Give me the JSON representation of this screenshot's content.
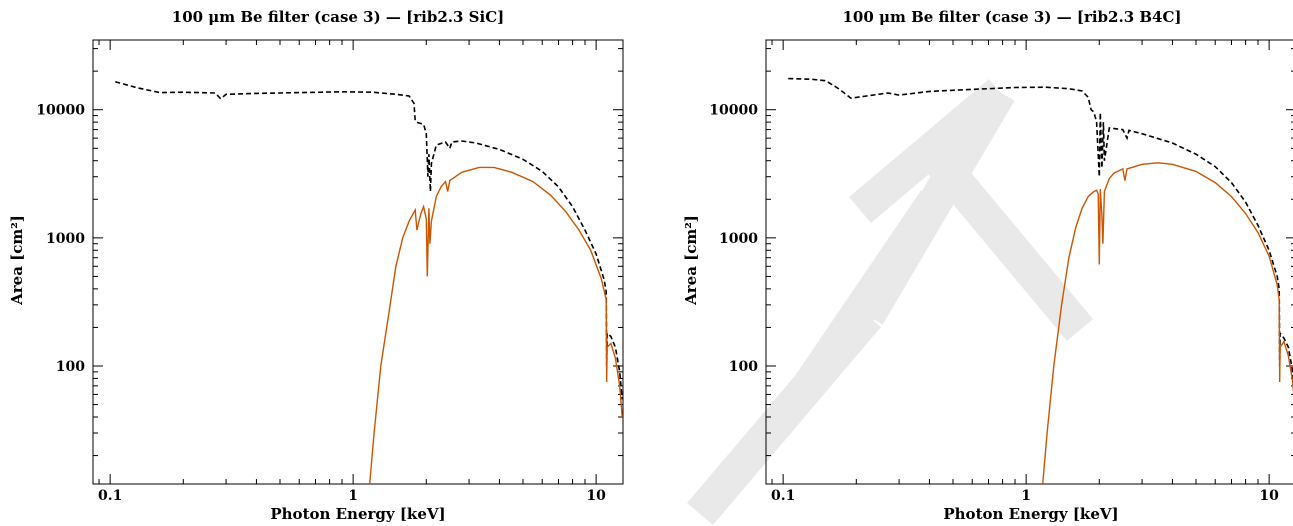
{
  "colors": {
    "effective_area": "#cc5500",
    "total_area": "#000000",
    "watermark": "#e9e9e9"
  },
  "watermark": {
    "text": "FT"
  },
  "chart_data": [
    {
      "type": "line",
      "title": "100 μm Be filter (case 3) — [rib2.3 SiC]",
      "xlabel": "Photon Energy [keV]",
      "ylabel": "Area [cm²]",
      "xscale": "log",
      "yscale": "log",
      "xlim": [
        0.085,
        12.9
      ],
      "ylim": [
        12,
        35000
      ],
      "xticks": [
        0.1,
        1,
        10
      ],
      "xtick_labels": [
        "0.1",
        "1",
        "10"
      ],
      "yticks": [
        100,
        1000,
        10000
      ],
      "ytick_labels": [
        "100",
        "1000",
        "10000"
      ],
      "grid": false,
      "series": [
        {
          "style": "dashed",
          "color": "#000000",
          "points": [
            [
              0.105,
              16500
            ],
            [
              0.13,
              14800
            ],
            [
              0.16,
              13600
            ],
            [
              0.2,
              13700
            ],
            [
              0.27,
              13500
            ],
            [
              0.285,
              12200
            ],
            [
              0.3,
              13200
            ],
            [
              0.4,
              13400
            ],
            [
              0.6,
              13600
            ],
            [
              0.9,
              13800
            ],
            [
              1.2,
              13700
            ],
            [
              1.5,
              13200
            ],
            [
              1.7,
              12800
            ],
            [
              1.78,
              11200
            ],
            [
              1.8,
              8200
            ],
            [
              1.85,
              7900
            ],
            [
              1.95,
              7700
            ],
            [
              2.0,
              6500
            ],
            [
              2.03,
              3000
            ],
            [
              2.05,
              4500
            ],
            [
              2.08,
              2300
            ],
            [
              2.1,
              3800
            ],
            [
              2.2,
              5300
            ],
            [
              2.4,
              5600
            ],
            [
              2.5,
              5000
            ],
            [
              2.55,
              5600
            ],
            [
              2.8,
              5700
            ],
            [
              3.2,
              5500
            ],
            [
              4.0,
              4900
            ],
            [
              5.0,
              4100
            ],
            [
              6.0,
              3300
            ],
            [
              7.0,
              2500
            ],
            [
              8.0,
              1750
            ],
            [
              9.0,
              1150
            ],
            [
              10.0,
              750
            ],
            [
              10.8,
              470
            ],
            [
              11.0,
              380
            ],
            [
              11.05,
              100
            ],
            [
              11.1,
              180
            ],
            [
              11.5,
              170
            ],
            [
              12.0,
              140
            ],
            [
              12.5,
              90
            ],
            [
              12.8,
              55
            ]
          ]
        },
        {
          "style": "solid",
          "color": "#cc5500",
          "points": [
            [
              1.17,
              12
            ],
            [
              1.22,
              30
            ],
            [
              1.3,
              100
            ],
            [
              1.4,
              250
            ],
            [
              1.5,
              600
            ],
            [
              1.6,
              1000
            ],
            [
              1.7,
              1350
            ],
            [
              1.8,
              1650
            ],
            [
              1.83,
              1150
            ],
            [
              1.9,
              1550
            ],
            [
              1.95,
              1750
            ],
            [
              2.0,
              1400
            ],
            [
              2.02,
              500
            ],
            [
              2.05,
              1700
            ],
            [
              2.07,
              900
            ],
            [
              2.1,
              1350
            ],
            [
              2.2,
              2100
            ],
            [
              2.3,
              2500
            ],
            [
              2.4,
              2750
            ],
            [
              2.45,
              2300
            ],
            [
              2.5,
              2800
            ],
            [
              2.8,
              3250
            ],
            [
              3.3,
              3550
            ],
            [
              3.8,
              3550
            ],
            [
              4.5,
              3250
            ],
            [
              5.5,
              2750
            ],
            [
              6.5,
              2150
            ],
            [
              7.5,
              1600
            ],
            [
              8.5,
              1150
            ],
            [
              9.5,
              800
            ],
            [
              10.5,
              480
            ],
            [
              11.0,
              330
            ],
            [
              11.05,
              75
            ],
            [
              11.1,
              140
            ],
            [
              11.5,
              150
            ],
            [
              12.0,
              115
            ],
            [
              12.5,
              70
            ],
            [
              12.8,
              40
            ]
          ]
        }
      ]
    },
    {
      "type": "line",
      "title": "100 μm Be filter (case 3) — [rib2.3 B4C]",
      "xlabel": "Photon Energy [keV]",
      "ylabel": "Area [cm²]",
      "xscale": "log",
      "yscale": "log",
      "xlim": [
        0.085,
        12.9
      ],
      "ylim": [
        12,
        35000
      ],
      "xticks": [
        0.1,
        1,
        10
      ],
      "xtick_labels": [
        "0.1",
        "1",
        "10"
      ],
      "yticks": [
        100,
        1000,
        10000
      ],
      "ytick_labels": [
        "100",
        "1000",
        "10000"
      ],
      "grid": false,
      "series": [
        {
          "style": "dashed",
          "color": "#000000",
          "points": [
            [
              0.105,
              17500
            ],
            [
              0.13,
              17300
            ],
            [
              0.15,
              16800
            ],
            [
              0.17,
              14500
            ],
            [
              0.19,
              12300
            ],
            [
              0.22,
              12800
            ],
            [
              0.27,
              13500
            ],
            [
              0.3,
              13000
            ],
            [
              0.4,
              13900
            ],
            [
              0.6,
              14400
            ],
            [
              0.9,
              14900
            ],
            [
              1.2,
              15000
            ],
            [
              1.5,
              14600
            ],
            [
              1.7,
              14000
            ],
            [
              1.8,
              12500
            ],
            [
              1.85,
              10000
            ],
            [
              1.9,
              9600
            ],
            [
              1.95,
              8000
            ],
            [
              2.0,
              3000
            ],
            [
              2.02,
              9500
            ],
            [
              2.05,
              3500
            ],
            [
              2.08,
              8000
            ],
            [
              2.1,
              4000
            ],
            [
              2.2,
              7200
            ],
            [
              2.5,
              7000
            ],
            [
              2.6,
              6000
            ],
            [
              2.65,
              6900
            ],
            [
              3.0,
              6500
            ],
            [
              4.0,
              5500
            ],
            [
              5.0,
              4500
            ],
            [
              6.0,
              3600
            ],
            [
              7.0,
              2700
            ],
            [
              8.0,
              1900
            ],
            [
              9.0,
              1250
            ],
            [
              10.0,
              800
            ],
            [
              10.8,
              500
            ],
            [
              11.0,
              400
            ],
            [
              11.05,
              100
            ],
            [
              11.1,
              180
            ],
            [
              11.5,
              165
            ],
            [
              12.0,
              140
            ],
            [
              12.5,
              90
            ],
            [
              12.8,
              58
            ]
          ]
        },
        {
          "style": "solid",
          "color": "#cc5500",
          "points": [
            [
              1.17,
              12
            ],
            [
              1.22,
              30
            ],
            [
              1.3,
              100
            ],
            [
              1.4,
              300
            ],
            [
              1.5,
              700
            ],
            [
              1.6,
              1200
            ],
            [
              1.7,
              1700
            ],
            [
              1.8,
              2100
            ],
            [
              1.9,
              2300
            ],
            [
              1.95,
              2350
            ],
            [
              1.98,
              2200
            ],
            [
              2.0,
              620
            ],
            [
              2.02,
              2400
            ],
            [
              2.05,
              1500
            ],
            [
              2.07,
              900
            ],
            [
              2.1,
              2300
            ],
            [
              2.2,
              2900
            ],
            [
              2.3,
              3200
            ],
            [
              2.5,
              3450
            ],
            [
              2.55,
              2800
            ],
            [
              2.6,
              3450
            ],
            [
              3.0,
              3750
            ],
            [
              3.5,
              3850
            ],
            [
              4.0,
              3750
            ],
            [
              5.0,
              3300
            ],
            [
              6.0,
              2700
            ],
            [
              7.0,
              2100
            ],
            [
              8.0,
              1550
            ],
            [
              9.0,
              1100
            ],
            [
              10.0,
              720
            ],
            [
              10.8,
              430
            ],
            [
              11.0,
              330
            ],
            [
              11.05,
              75
            ],
            [
              11.1,
              140
            ],
            [
              11.5,
              155
            ],
            [
              12.0,
              120
            ],
            [
              12.5,
              75
            ],
            [
              12.8,
              42
            ]
          ]
        }
      ]
    }
  ]
}
